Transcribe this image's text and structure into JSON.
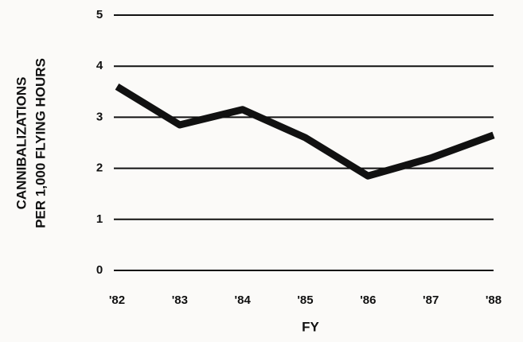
{
  "chart_data": {
    "type": "line",
    "ylabel": [
      "CANNIBALIZATIONS",
      "PER 1,000 FLYING HOURS"
    ],
    "xlabel": "FY",
    "categories": [
      "'82",
      "'83",
      "'84",
      "'85",
      "'86",
      "'87",
      "'88"
    ],
    "series": [
      {
        "color": "#111111",
        "values": [
          3.6,
          2.85,
          3.15,
          2.6,
          1.85,
          2.2,
          2.65
        ]
      }
    ],
    "ylim": [
      0,
      5
    ],
    "yticks": [
      0,
      1,
      2,
      3,
      4,
      5
    ],
    "grid": true
  }
}
